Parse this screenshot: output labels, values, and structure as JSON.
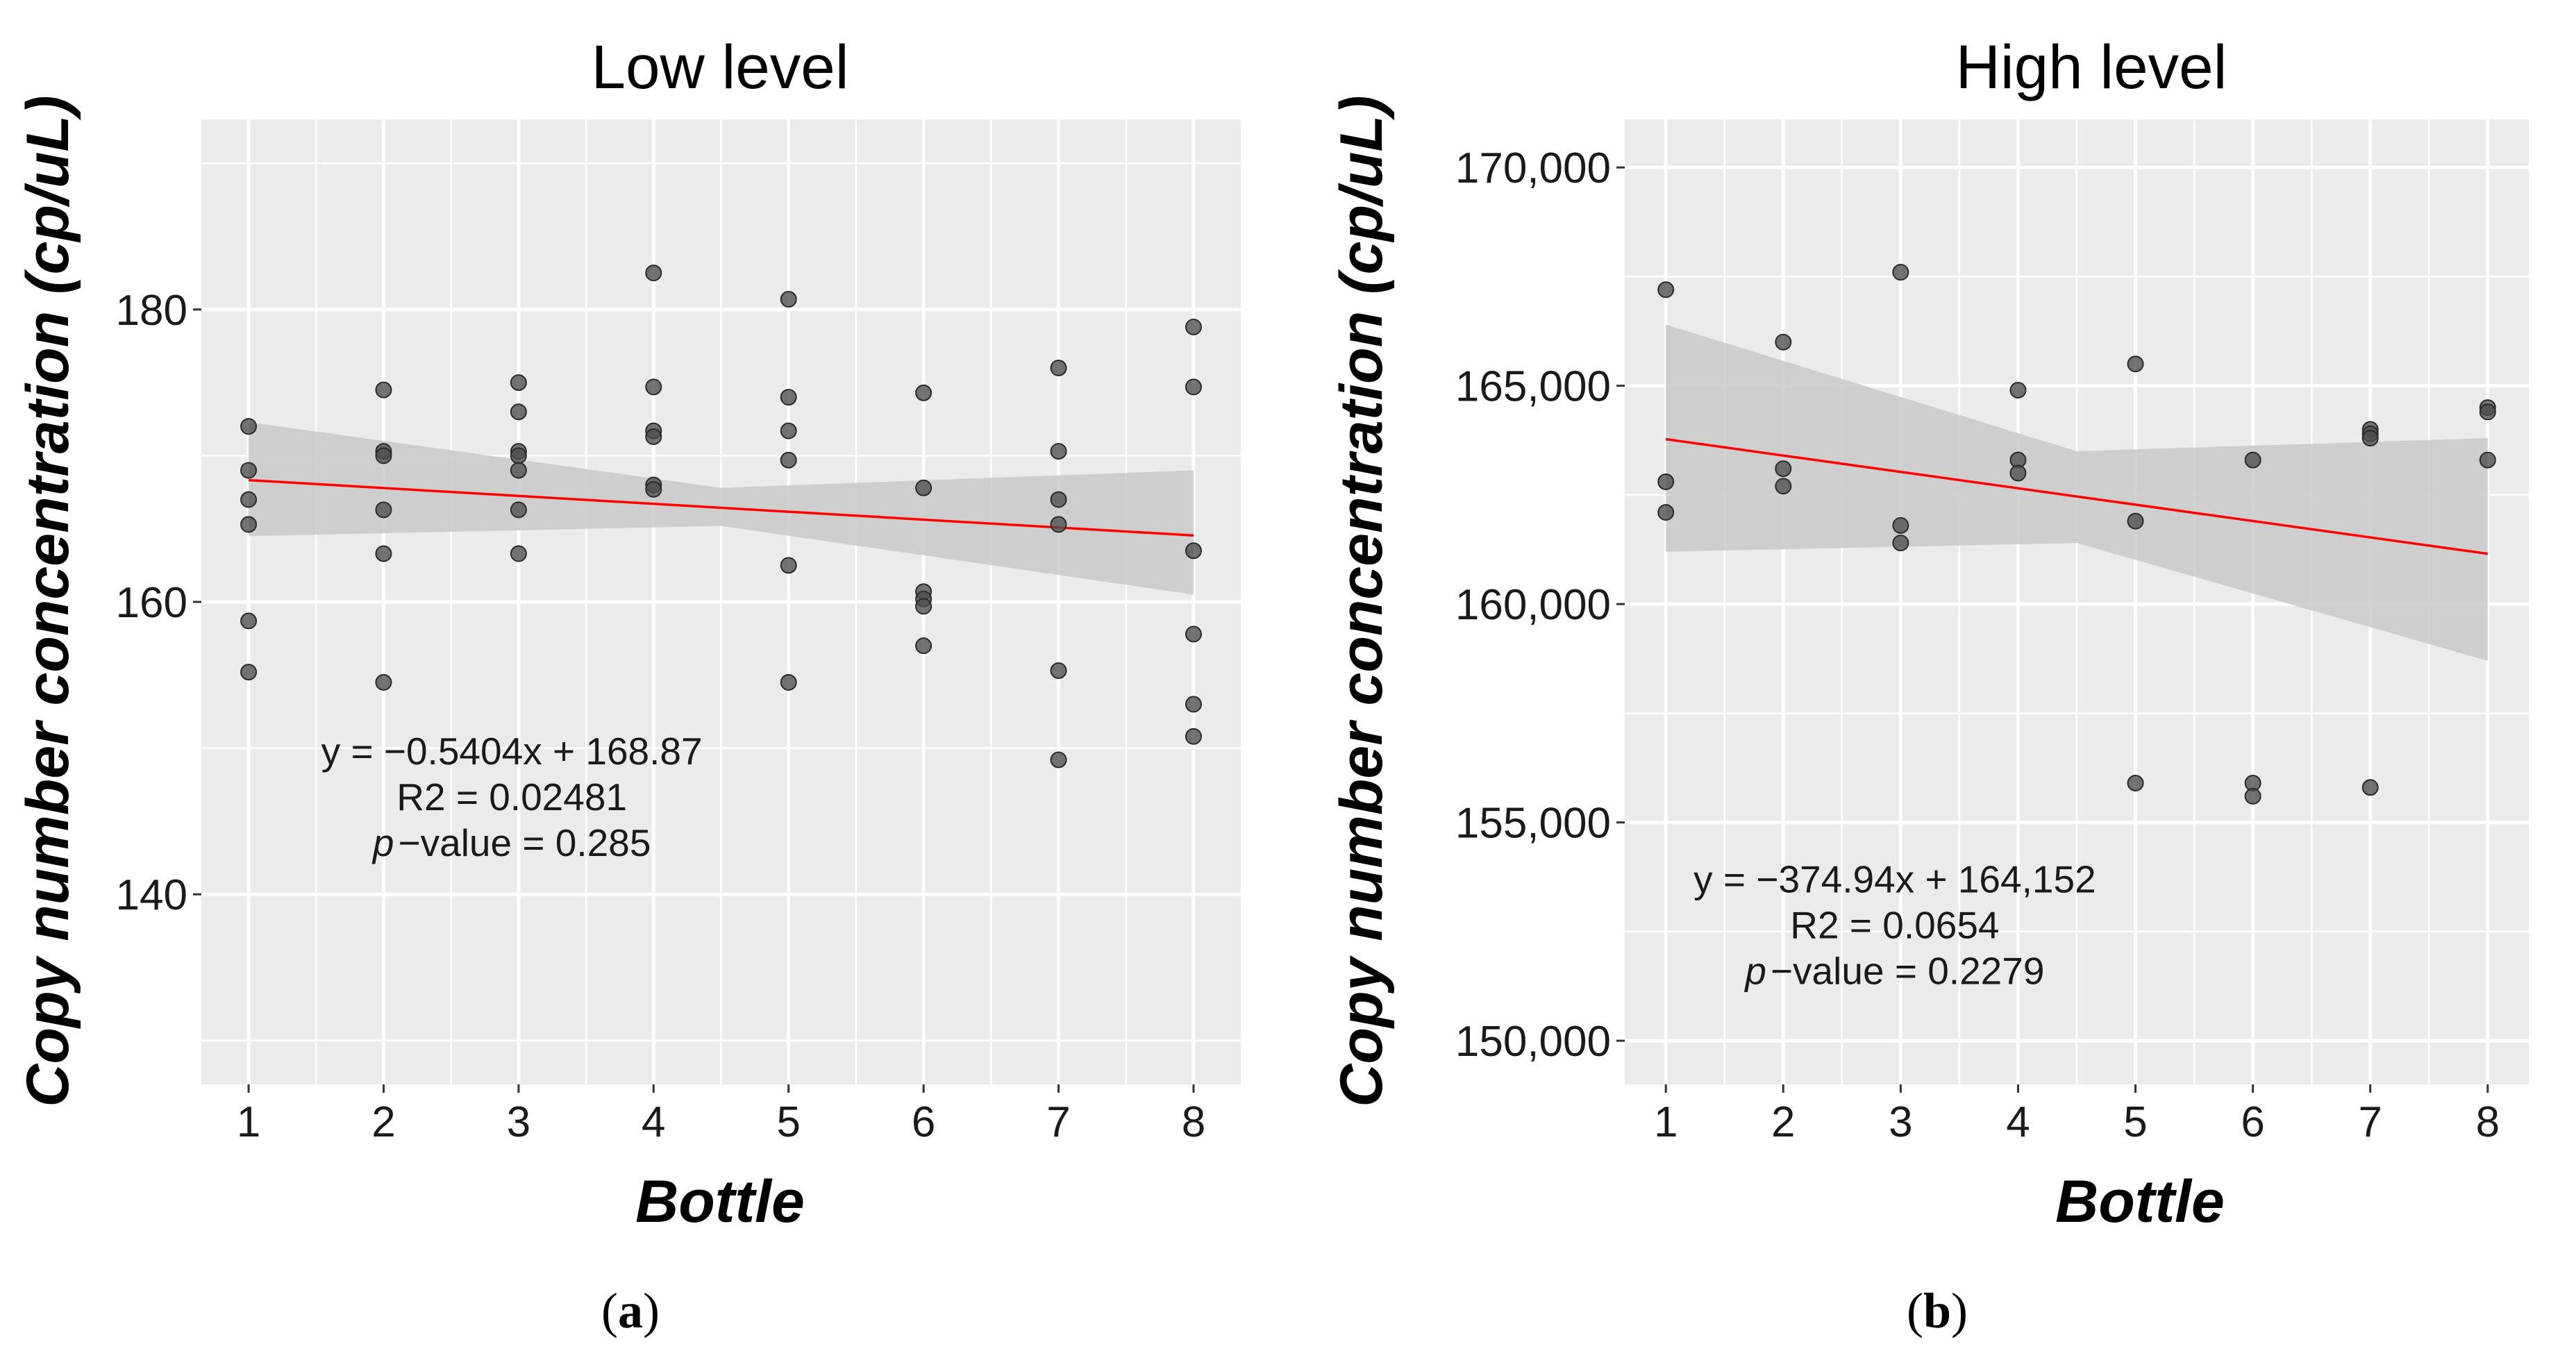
{
  "chart_data": [
    {
      "type": "scatter",
      "panel_label": "a",
      "title": "Low level",
      "xlabel": "Bottle",
      "ylabel": "Copy number concentration (cp/uL)",
      "xlim": [
        0.65,
        8.35
      ],
      "ylim": [
        127,
        193
      ],
      "x_ticks": [
        1,
        2,
        3,
        4,
        5,
        6,
        7,
        8
      ],
      "x_tick_labels": [
        "1",
        "2",
        "3",
        "4",
        "5",
        "6",
        "7",
        "8"
      ],
      "y_ticks": [
        140,
        160,
        180
      ],
      "y_tick_labels": [
        "140",
        "160",
        "180"
      ],
      "points": [
        {
          "x": 1,
          "y": 172.0
        },
        {
          "x": 1,
          "y": 169.0
        },
        {
          "x": 1,
          "y": 167.0
        },
        {
          "x": 1,
          "y": 165.3
        },
        {
          "x": 1,
          "y": 158.7
        },
        {
          "x": 1,
          "y": 155.2
        },
        {
          "x": 2,
          "y": 174.5
        },
        {
          "x": 2,
          "y": 170.3
        },
        {
          "x": 2,
          "y": 170.0
        },
        {
          "x": 2,
          "y": 166.3
        },
        {
          "x": 2,
          "y": 163.3
        },
        {
          "x": 2,
          "y": 154.5
        },
        {
          "x": 3,
          "y": 175.0
        },
        {
          "x": 3,
          "y": 173.0
        },
        {
          "x": 3,
          "y": 170.3
        },
        {
          "x": 3,
          "y": 170.0
        },
        {
          "x": 3,
          "y": 169.0
        },
        {
          "x": 3,
          "y": 166.3
        },
        {
          "x": 3,
          "y": 163.3
        },
        {
          "x": 4,
          "y": 182.5
        },
        {
          "x": 4,
          "y": 174.7
        },
        {
          "x": 4,
          "y": 171.7
        },
        {
          "x": 4,
          "y": 171.3
        },
        {
          "x": 4,
          "y": 168.0
        },
        {
          "x": 4,
          "y": 167.7
        },
        {
          "x": 5,
          "y": 180.7
        },
        {
          "x": 5,
          "y": 174.0
        },
        {
          "x": 5,
          "y": 171.7
        },
        {
          "x": 5,
          "y": 169.7
        },
        {
          "x": 5,
          "y": 162.5
        },
        {
          "x": 5,
          "y": 154.5
        },
        {
          "x": 6,
          "y": 174.3
        },
        {
          "x": 6,
          "y": 167.8
        },
        {
          "x": 6,
          "y": 160.7
        },
        {
          "x": 6,
          "y": 160.2
        },
        {
          "x": 6,
          "y": 159.7
        },
        {
          "x": 6,
          "y": 157.0
        },
        {
          "x": 7,
          "y": 176.0
        },
        {
          "x": 7,
          "y": 170.3
        },
        {
          "x": 7,
          "y": 167.0
        },
        {
          "x": 7,
          "y": 165.3
        },
        {
          "x": 7,
          "y": 155.3
        },
        {
          "x": 7,
          "y": 149.2
        },
        {
          "x": 8,
          "y": 178.8
        },
        {
          "x": 8,
          "y": 174.7
        },
        {
          "x": 8,
          "y": 163.5
        },
        {
          "x": 8,
          "y": 157.8
        },
        {
          "x": 8,
          "y": 153.0
        },
        {
          "x": 8,
          "y": 150.8
        }
      ],
      "fit": {
        "slope": -0.5404,
        "intercept": 168.87,
        "x_range": [
          1,
          8
        ]
      },
      "ci_band": {
        "x": [
          1,
          4.5,
          8
        ],
        "lower": [
          164.5,
          165.2,
          160.5
        ],
        "upper": [
          172.3,
          167.8,
          169.0
        ]
      },
      "annotation": {
        "line1": "y = −0.5404x + 168.87",
        "line2": "R2 = 0.02481",
        "line3_italic": "p",
        "line3_rest": "−value = 0.285",
        "at": [
          2.95,
          148.9
        ]
      },
      "colors": {
        "panel": "#ebebeb",
        "grid": "#ffffff",
        "fit_line": "#ff0000",
        "band": "#c9c9c9",
        "point": "#4d4d4d"
      }
    },
    {
      "type": "scatter",
      "panel_label": "b",
      "title": "High level",
      "xlabel": "Bottle",
      "ylabel": "Copy number concentration (cp/uL)",
      "xlim": [
        0.65,
        8.35
      ],
      "ylim": [
        149000,
        171100
      ],
      "x_ticks": [
        1,
        2,
        3,
        4,
        5,
        6,
        7,
        8
      ],
      "x_tick_labels": [
        "1",
        "2",
        "3",
        "4",
        "5",
        "6",
        "7",
        "8"
      ],
      "y_ticks": [
        150000,
        155000,
        160000,
        165000,
        170000
      ],
      "y_tick_labels": [
        "150,000",
        "155,000",
        "160,000",
        "165,000",
        "170,000"
      ],
      "points": [
        {
          "x": 1,
          "y": 167200
        },
        {
          "x": 1,
          "y": 162800
        },
        {
          "x": 1,
          "y": 162100
        },
        {
          "x": 2,
          "y": 166000
        },
        {
          "x": 2,
          "y": 163100
        },
        {
          "x": 2,
          "y": 162700
        },
        {
          "x": 3,
          "y": 167600
        },
        {
          "x": 3,
          "y": 161800
        },
        {
          "x": 3,
          "y": 161400
        },
        {
          "x": 4,
          "y": 164900
        },
        {
          "x": 4,
          "y": 163300
        },
        {
          "x": 4,
          "y": 163000
        },
        {
          "x": 5,
          "y": 165500
        },
        {
          "x": 5,
          "y": 161900
        },
        {
          "x": 5,
          "y": 155900
        },
        {
          "x": 6,
          "y": 163300
        },
        {
          "x": 6,
          "y": 155900
        },
        {
          "x": 6,
          "y": 155600
        },
        {
          "x": 7,
          "y": 164000
        },
        {
          "x": 7,
          "y": 163900
        },
        {
          "x": 7,
          "y": 163800
        },
        {
          "x": 7,
          "y": 155800
        },
        {
          "x": 8,
          "y": 164500
        },
        {
          "x": 8,
          "y": 164400
        },
        {
          "x": 8,
          "y": 163300
        }
      ],
      "fit": {
        "slope": -374.94,
        "intercept": 164152,
        "x_range": [
          1,
          8
        ]
      },
      "ci_band": {
        "x": [
          1,
          4.5,
          8
        ],
        "lower": [
          161200,
          161400,
          158700
        ],
        "upper": [
          166400,
          163500,
          163800
        ]
      },
      "annotation": {
        "line1": "y = −374.94x + 164,152",
        "line2": "R2 = 0.0654",
        "line3_italic": "p",
        "line3_rest": "−value = 0.2279",
        "at": [
          2.95,
          153400
        ]
      },
      "colors": {
        "panel": "#ebebeb",
        "grid": "#ffffff",
        "fit_line": "#ff0000",
        "band": "#c9c9c9",
        "point": "#4d4d4d"
      }
    }
  ]
}
